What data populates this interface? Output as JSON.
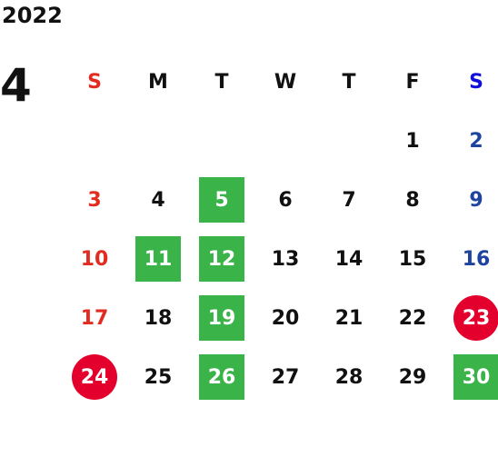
{
  "year": "2022",
  "month": "4",
  "weekdays": [
    "S",
    "M",
    "T",
    "W",
    "T",
    "F",
    "S"
  ],
  "colors": {
    "sunday": "#e22c20",
    "saturday": "#1e44a0",
    "saturday_header": "#1010d8",
    "highlight_green": "#3ab449",
    "holiday_red": "#e3002d"
  },
  "weeks": [
    [
      null,
      null,
      null,
      null,
      null,
      {
        "day": "1"
      },
      {
        "day": "2"
      }
    ],
    [
      {
        "day": "3"
      },
      {
        "day": "4"
      },
      {
        "day": "5",
        "mark": "green"
      },
      {
        "day": "6"
      },
      {
        "day": "7"
      },
      {
        "day": "8"
      },
      {
        "day": "9"
      }
    ],
    [
      {
        "day": "10"
      },
      {
        "day": "11",
        "mark": "green"
      },
      {
        "day": "12",
        "mark": "green"
      },
      {
        "day": "13"
      },
      {
        "day": "14"
      },
      {
        "day": "15"
      },
      {
        "day": "16"
      }
    ],
    [
      {
        "day": "17"
      },
      {
        "day": "18"
      },
      {
        "day": "19",
        "mark": "green"
      },
      {
        "day": "20"
      },
      {
        "day": "21"
      },
      {
        "day": "22"
      },
      {
        "day": "23",
        "mark": "red"
      }
    ],
    [
      {
        "day": "24",
        "mark": "red"
      },
      {
        "day": "25"
      },
      {
        "day": "26",
        "mark": "green"
      },
      {
        "day": "27"
      },
      {
        "day": "28"
      },
      {
        "day": "29"
      },
      {
        "day": "30",
        "mark": "green"
      }
    ]
  ]
}
